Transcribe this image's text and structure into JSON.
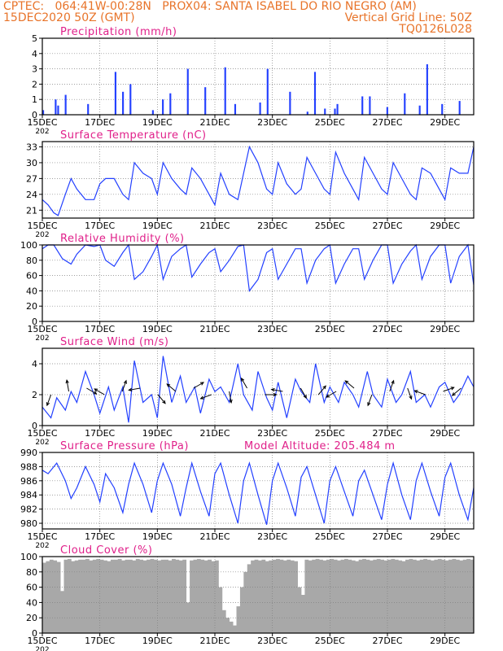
{
  "header": {
    "line1": "CPTEC:   064:41W-00:28N   PROX04: SANTA ISABEL DO RIO NEGRO (AM)",
    "line2_left": "15DEC2020 50Z (GMT)",
    "line2_right": "Vertical Grid Line: 50Z",
    "line3_right": "TQ0126L028"
  },
  "colors": {
    "header": "#e8742a",
    "title": "#e0208a",
    "series": "#2340ff",
    "bars": "#2340ff",
    "cloud": "#a8a8a8",
    "grid": "#808080"
  },
  "x_ticks": [
    "15DEC",
    "17DEC",
    "19DEC",
    "21DEC",
    "23DEC",
    "25DEC",
    "27DEC",
    "29DEC"
  ],
  "x_tick_days": [
    0,
    2,
    4,
    6,
    8,
    10,
    12,
    14
  ],
  "x_range_days": [
    0,
    15
  ],
  "year_fragment": "202",
  "panels": {
    "precip": {
      "title": "Precipitation (mm/h)",
      "yticks": [
        "0",
        "1",
        "2",
        "3",
        "4",
        "5"
      ]
    },
    "temp": {
      "title": "Surface Temperature (nC)",
      "yticks": [
        "21",
        "24",
        "27",
        "30",
        "33"
      ]
    },
    "rh": {
      "title": "Relative Humidity (%)",
      "yticks": [
        "0",
        "20",
        "40",
        "60",
        "80",
        "100"
      ]
    },
    "wind": {
      "title": "Surface Wind (m/s)",
      "yticks": [
        "0",
        "2",
        "4"
      ]
    },
    "pres": {
      "title": "Surface Pressure (hPa)",
      "extra": "Model Altitude: 205.484 m",
      "yticks": [
        "980",
        "982",
        "984",
        "986",
        "988",
        "990"
      ]
    },
    "cloud": {
      "title": "Cloud Cover (%)",
      "yticks": [
        "0",
        "20",
        "40",
        "60",
        "80",
        "100"
      ]
    }
  },
  "chart_data": [
    {
      "type": "bar",
      "title": "Precipitation (mm/h)",
      "ylim": [
        0,
        5
      ],
      "x_start": "15DEC2020 50Z",
      "step_hours": 6,
      "x_unit": "days",
      "values": [
        0.3,
        0,
        0,
        0,
        0,
        1.0,
        0.6,
        0,
        0,
        1.3,
        0,
        0,
        0,
        0,
        0,
        0,
        0,
        0,
        0.7,
        0,
        0,
        0,
        0,
        0,
        0,
        0,
        0,
        0,
        0,
        2.8,
        0,
        0,
        1.5,
        0,
        0,
        2.0,
        0,
        0,
        0,
        0,
        0,
        0,
        0,
        0,
        0.3,
        0,
        0,
        0,
        1.0,
        0,
        0,
        1.4,
        0,
        0,
        0,
        0,
        0,
        0,
        3.0,
        0,
        0,
        0,
        0,
        0,
        0,
        1.8,
        0,
        0,
        0,
        0,
        0,
        0,
        0,
        3.1,
        0,
        0,
        0,
        0.7,
        0,
        0,
        0,
        0,
        0,
        0,
        0,
        0,
        0,
        0.8,
        0,
        0,
        3.0,
        0,
        0,
        0,
        0,
        0,
        0,
        0,
        0,
        1.5,
        0,
        0,
        0,
        0,
        0,
        0,
        0.2,
        0,
        0,
        2.8,
        0,
        0,
        0,
        0.4,
        0,
        0,
        0,
        0.4,
        0.7,
        0,
        0,
        0,
        0,
        0,
        0,
        0,
        0,
        0,
        1.2,
        0,
        0,
        1.2,
        0,
        0,
        0,
        0,
        0,
        0,
        0.5,
        0,
        0,
        0,
        0,
        0,
        0,
        1.4,
        0,
        0,
        0,
        0,
        0,
        0.6,
        0,
        0,
        3.3,
        0,
        0,
        0,
        0,
        0,
        0.7,
        0,
        0,
        0,
        0,
        0,
        0,
        0.9,
        0,
        0,
        0,
        0,
        0
      ]
    },
    {
      "type": "line",
      "title": "Surface Temperature (nC)",
      "ylim": [
        19.5,
        34
      ],
      "x": [
        0,
        0.2,
        0.4,
        0.55,
        0.8,
        1.0,
        1.2,
        1.5,
        1.8,
        2.0,
        2.2,
        2.5,
        2.8,
        3.0,
        3.2,
        3.5,
        3.8,
        4.0,
        4.2,
        4.5,
        4.8,
        5.0,
        5.2,
        5.5,
        5.8,
        6.0,
        6.2,
        6.5,
        6.8,
        7.0,
        7.2,
        7.5,
        7.8,
        8.0,
        8.2,
        8.5,
        8.8,
        9.0,
        9.2,
        9.5,
        9.8,
        10.0,
        10.2,
        10.5,
        10.8,
        11.0,
        11.2,
        11.5,
        11.8,
        12.0,
        12.2,
        12.5,
        12.8,
        13.0,
        13.2,
        13.5,
        13.8,
        14.0,
        14.2,
        14.5,
        14.8,
        15.0
      ],
      "values": [
        23,
        22,
        20.5,
        20,
        24,
        27,
        25,
        23,
        23,
        26,
        27,
        27,
        24,
        23,
        30,
        28,
        27,
        24,
        30,
        27,
        25,
        24,
        29,
        27,
        24,
        22,
        28,
        24,
        23,
        28,
        33,
        30,
        25,
        24,
        30,
        26,
        24,
        25,
        31,
        28,
        25,
        24,
        32,
        28,
        25,
        23,
        31,
        28,
        25,
        24,
        30,
        27,
        24,
        23,
        29,
        28,
        25,
        23,
        29,
        28,
        28,
        33
      ],
      "ylabel": ""
    },
    {
      "type": "line",
      "title": "Relative Humidity (%)",
      "ylim": [
        0,
        100
      ],
      "x": [
        0,
        0.2,
        0.4,
        0.7,
        1.0,
        1.2,
        1.5,
        1.8,
        2.0,
        2.2,
        2.5,
        2.8,
        3.0,
        3.2,
        3.5,
        3.8,
        4.0,
        4.2,
        4.5,
        4.8,
        5.0,
        5.2,
        5.5,
        5.8,
        6.0,
        6.2,
        6.5,
        6.8,
        7.0,
        7.2,
        7.5,
        7.8,
        8.0,
        8.2,
        8.5,
        8.8,
        9.0,
        9.2,
        9.5,
        9.8,
        10.0,
        10.2,
        10.5,
        10.8,
        11.0,
        11.2,
        11.5,
        11.8,
        12.0,
        12.2,
        12.5,
        12.8,
        13.0,
        13.2,
        13.5,
        13.8,
        14.0,
        14.2,
        14.5,
        14.8,
        15.0
      ],
      "values": [
        95,
        100,
        100,
        82,
        75,
        88,
        100,
        98,
        100,
        80,
        72,
        90,
        100,
        55,
        65,
        85,
        100,
        55,
        85,
        95,
        100,
        58,
        75,
        90,
        95,
        65,
        80,
        98,
        100,
        40,
        55,
        90,
        95,
        55,
        75,
        95,
        95,
        50,
        80,
        95,
        100,
        50,
        75,
        95,
        95,
        55,
        80,
        100,
        100,
        50,
        75,
        92,
        100,
        55,
        85,
        100,
        100,
        50,
        85,
        100,
        48
      ]
    },
    {
      "type": "line",
      "title": "Surface Wind (m/s)",
      "ylim": [
        0,
        5
      ],
      "x": [
        0,
        0.3,
        0.5,
        0.8,
        1.0,
        1.2,
        1.5,
        1.8,
        2.0,
        2.3,
        2.5,
        2.8,
        3.0,
        3.2,
        3.5,
        3.8,
        4.0,
        4.2,
        4.5,
        4.8,
        5.0,
        5.3,
        5.5,
        5.8,
        6.0,
        6.2,
        6.5,
        6.8,
        7.0,
        7.3,
        7.5,
        7.8,
        8.0,
        8.2,
        8.5,
        8.8,
        9.0,
        9.3,
        9.5,
        9.8,
        10.0,
        10.3,
        10.5,
        10.8,
        11.0,
        11.3,
        11.5,
        11.8,
        12.0,
        12.3,
        12.5,
        12.8,
        13.0,
        13.3,
        13.5,
        13.8,
        14.0,
        14.3,
        14.5,
        14.8,
        15.0
      ],
      "values": [
        1.2,
        0.5,
        1.8,
        1.0,
        2.2,
        1.5,
        3.5,
        2.0,
        0.8,
        2.5,
        1.0,
        2.5,
        0.2,
        4.2,
        1.5,
        2.0,
        0.5,
        4.5,
        1.5,
        3.2,
        1.5,
        2.5,
        0.8,
        3.0,
        2.2,
        2.5,
        1.5,
        4.0,
        2.0,
        1.0,
        3.5,
        1.8,
        1.0,
        2.8,
        0.5,
        3.0,
        2.2,
        1.5,
        4.0,
        1.5,
        2.5,
        1.5,
        2.8,
        2.0,
        1.2,
        3.5,
        2.0,
        1.2,
        3.0,
        1.5,
        2.0,
        3.5,
        1.5,
        2.0,
        1.2,
        2.5,
        2.8,
        1.5,
        2.0,
        3.2,
        2.5
      ]
    },
    {
      "type": "line",
      "title": "Surface Pressure (hPa)",
      "ylim": [
        979.2,
        990
      ],
      "x": [
        0,
        0.2,
        0.5,
        0.8,
        1.0,
        1.2,
        1.5,
        1.8,
        2.0,
        2.2,
        2.5,
        2.8,
        3.0,
        3.2,
        3.5,
        3.8,
        4.0,
        4.2,
        4.5,
        4.8,
        5.0,
        5.2,
        5.5,
        5.8,
        6.0,
        6.2,
        6.5,
        6.8,
        7.0,
        7.2,
        7.5,
        7.8,
        8.0,
        8.2,
        8.5,
        8.8,
        9.0,
        9.2,
        9.5,
        9.8,
        10.0,
        10.2,
        10.5,
        10.8,
        11.0,
        11.2,
        11.5,
        11.8,
        12.0,
        12.2,
        12.5,
        12.8,
        13.0,
        13.2,
        13.5,
        13.8,
        14.0,
        14.2,
        14.5,
        14.8,
        15.0
      ],
      "values": [
        987.5,
        987,
        988.5,
        986,
        983.5,
        985,
        988,
        985.5,
        983,
        987,
        985,
        981.5,
        985.5,
        988.5,
        985.5,
        981.5,
        986,
        988.5,
        985.5,
        981,
        985,
        988.5,
        984.5,
        981,
        987,
        988.5,
        984,
        980,
        986,
        988.5,
        984,
        979.8,
        986,
        988.5,
        985,
        981,
        986.5,
        988,
        984,
        980,
        986,
        988,
        984.5,
        981,
        986,
        987.5,
        984,
        980.5,
        985.5,
        988.5,
        984,
        980.5,
        986,
        988.5,
        984.5,
        981,
        986.5,
        988.5,
        984,
        980.5,
        985
      ]
    },
    {
      "type": "bar",
      "title": "Cloud Cover (%)",
      "ylim": [
        0,
        100
      ],
      "x_start": "15DEC2020 50Z",
      "step_hours": 3,
      "values": [
        92,
        94,
        96,
        95,
        93,
        55,
        96,
        97,
        94,
        95,
        96,
        96,
        97,
        95,
        96,
        97,
        96,
        95,
        94,
        96,
        96,
        97,
        95,
        96,
        96,
        95,
        97,
        96,
        95,
        96,
        97,
        96,
        95,
        96,
        96,
        95,
        97,
        96,
        95,
        96,
        40,
        95,
        96,
        97,
        96,
        95,
        96,
        94,
        95,
        60,
        30,
        20,
        15,
        10,
        35,
        60,
        80,
        90,
        95,
        96,
        95,
        96,
        94,
        95,
        96,
        97,
        96,
        95,
        96,
        95,
        94,
        60,
        50,
        96,
        95,
        96,
        97,
        96,
        95,
        96,
        97,
        96,
        95,
        96,
        97,
        96,
        95,
        94,
        96,
        97,
        96,
        95,
        96,
        97,
        96,
        95,
        96,
        97,
        96,
        95,
        94,
        96,
        97,
        96,
        95,
        96,
        97,
        96,
        95,
        96,
        97,
        96,
        95,
        96,
        97,
        96,
        95,
        96,
        97,
        96
      ]
    }
  ]
}
